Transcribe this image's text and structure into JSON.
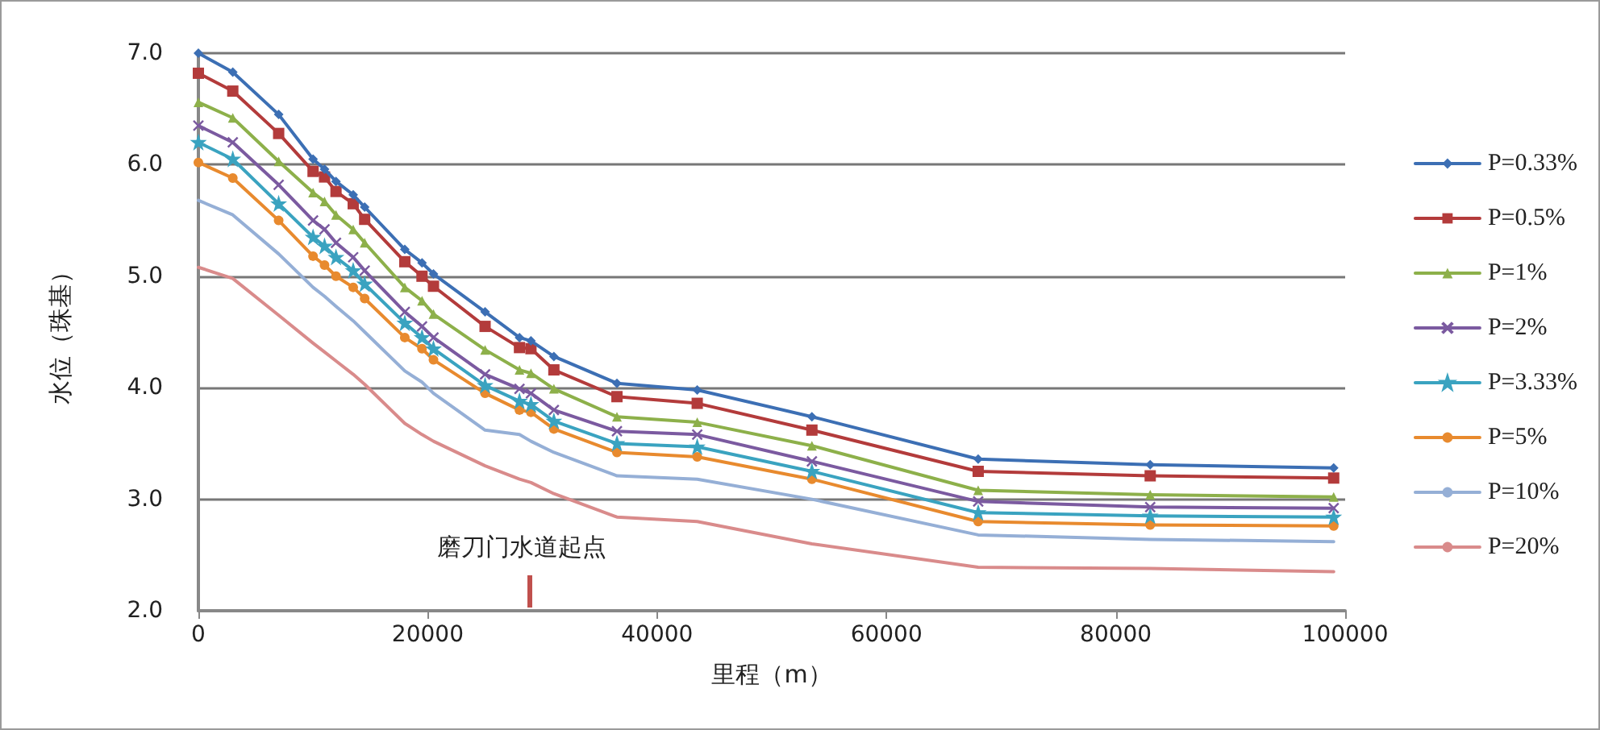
{
  "chart_data": {
    "type": "line",
    "xlabel": "里程（m）",
    "ylabel": "水位（珠基）",
    "x": [
      0,
      3000,
      7000,
      10000,
      11000,
      12000,
      13500,
      14500,
      18000,
      19500,
      20500,
      25000,
      28000,
      29000,
      31000,
      36500,
      43500,
      53500,
      68000,
      83000,
      99000
    ],
    "xlim": [
      0,
      100000
    ],
    "xticks": [
      0,
      20000,
      40000,
      60000,
      80000,
      100000
    ],
    "ylim": [
      2.0,
      7.0
    ],
    "yticks": [
      {
        "value": 2.0,
        "label": "2.0"
      },
      {
        "value": 3.0,
        "label": "3.0"
      },
      {
        "value": 4.0,
        "label": "4.0"
      },
      {
        "value": 5.0,
        "label": "5.0"
      },
      {
        "value": 6.0,
        "label": "6.0"
      },
      {
        "value": 7.0,
        "label": "7.0"
      }
    ],
    "grid": "y",
    "legend": "right",
    "line_style": "solid",
    "annotations": [
      "磨刀门水道起点"
    ],
    "series": [
      {
        "name": "P=0.33%",
        "color": "#3c6fb4",
        "marker": "diamond",
        "values": [
          7.0,
          6.83,
          6.45,
          6.05,
          5.96,
          5.85,
          5.73,
          5.62,
          5.24,
          5.12,
          5.02,
          4.68,
          4.45,
          4.42,
          4.28,
          4.04,
          3.98,
          3.74,
          3.36,
          3.31,
          3.28
        ]
      },
      {
        "name": "P=0.5%",
        "color": "#b33b3b",
        "marker": "square",
        "values": [
          6.82,
          6.66,
          6.28,
          5.94,
          5.89,
          5.76,
          5.65,
          5.51,
          5.13,
          5.0,
          4.91,
          4.55,
          4.36,
          4.35,
          4.16,
          3.92,
          3.86,
          3.62,
          3.25,
          3.21,
          3.19
        ]
      },
      {
        "name": "P=1%",
        "color": "#8db04a",
        "marker": "triangle",
        "values": [
          6.56,
          6.42,
          6.03,
          5.75,
          5.67,
          5.55,
          5.42,
          5.3,
          4.9,
          4.78,
          4.66,
          4.34,
          4.16,
          4.13,
          3.99,
          3.74,
          3.69,
          3.48,
          3.08,
          3.04,
          3.02
        ]
      },
      {
        "name": "P=2%",
        "color": "#7b5aa0",
        "marker": "cross",
        "values": [
          6.35,
          6.2,
          5.82,
          5.5,
          5.42,
          5.3,
          5.17,
          5.05,
          4.68,
          4.55,
          4.45,
          4.12,
          3.99,
          3.95,
          3.8,
          3.61,
          3.58,
          3.34,
          2.98,
          2.93,
          2.92
        ]
      },
      {
        "name": "P=3.33%",
        "color": "#3aa3c0",
        "marker": "star",
        "values": [
          6.2,
          6.05,
          5.65,
          5.35,
          5.27,
          5.17,
          5.05,
          4.93,
          4.58,
          4.45,
          4.35,
          4.02,
          3.88,
          3.85,
          3.7,
          3.5,
          3.47,
          3.25,
          2.88,
          2.85,
          2.84
        ]
      },
      {
        "name": "P=5%",
        "color": "#e88a2e",
        "marker": "circle",
        "values": [
          6.02,
          5.88,
          5.5,
          5.18,
          5.1,
          5.0,
          4.9,
          4.8,
          4.45,
          4.35,
          4.25,
          3.95,
          3.8,
          3.78,
          3.63,
          3.42,
          3.38,
          3.18,
          2.8,
          2.77,
          2.76
        ]
      },
      {
        "name": "P=10%",
        "color": "#95afd6",
        "marker": "none",
        "values": [
          5.68,
          5.55,
          5.2,
          4.9,
          4.82,
          4.73,
          4.6,
          4.5,
          4.15,
          4.05,
          3.95,
          3.62,
          3.58,
          3.52,
          3.42,
          3.21,
          3.18,
          3.0,
          2.68,
          2.64,
          2.62
        ]
      },
      {
        "name": "P=20%",
        "color": "#d98b8b",
        "marker": "none",
        "values": [
          5.08,
          4.98,
          4.65,
          4.4,
          4.32,
          4.24,
          4.12,
          4.03,
          3.68,
          3.58,
          3.52,
          3.3,
          3.18,
          3.15,
          3.05,
          2.84,
          2.8,
          2.6,
          2.39,
          2.38,
          2.35
        ]
      }
    ]
  }
}
